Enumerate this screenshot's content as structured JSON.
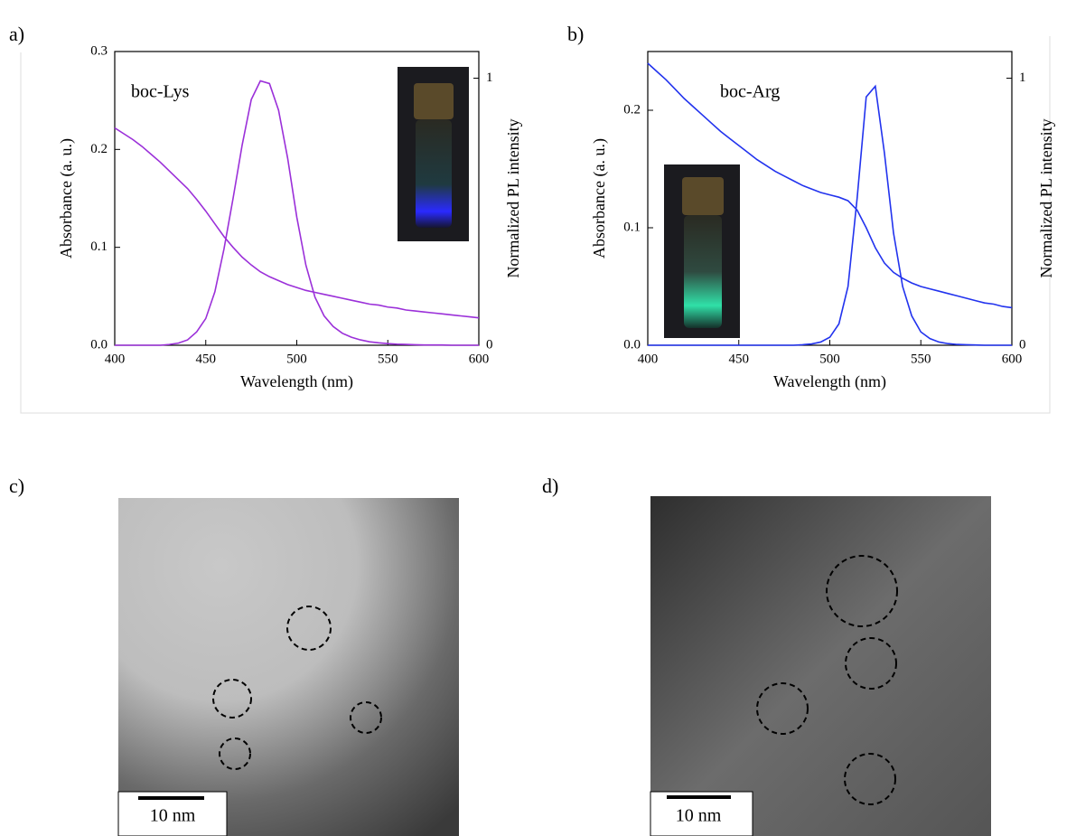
{
  "chart_data": [
    {
      "type": "line",
      "panel_label": "a)",
      "annotation": "boc-Lys",
      "xlabel": "Wavelength (nm)",
      "ylabel": "Absorbance (a. u.)",
      "y2label": "Normalized PL intensity",
      "xlim": [
        400,
        600
      ],
      "xticks": [
        400,
        450,
        500,
        550,
        600
      ],
      "ylim": [
        0,
        0.3
      ],
      "yticks": [
        {
          "value": 0,
          "label": "0.0"
        },
        0.1,
        0.2,
        0.3
      ],
      "y2lim": [
        0,
        1.1
      ],
      "y2ticks": [
        0,
        1
      ],
      "x": [
        400,
        405,
        410,
        415,
        420,
        425,
        430,
        435,
        440,
        445,
        450,
        455,
        460,
        465,
        470,
        475,
        480,
        485,
        490,
        495,
        500,
        505,
        510,
        515,
        520,
        525,
        530,
        535,
        540,
        545,
        550,
        555,
        560,
        565,
        570,
        575,
        580,
        585,
        590,
        595,
        600
      ],
      "series": [
        {
          "color": "#9b30d9",
          "values": [
            0.222,
            0.216,
            0.21,
            0.203,
            0.195,
            0.187,
            0.178,
            0.169,
            0.16,
            0.149,
            0.137,
            0.124,
            0.111,
            0.1,
            0.09,
            0.082,
            0.075,
            0.07,
            0.066,
            0.062,
            0.059,
            0.056,
            0.054,
            0.052,
            0.05,
            0.048,
            0.046,
            0.044,
            0.042,
            0.041,
            0.039,
            0.038,
            0.036,
            0.035,
            0.034,
            0.033,
            0.032,
            0.031,
            0.03,
            0.029,
            0.028
          ]
        },
        {
          "color": "#9b30d9",
          "axis": "y2",
          "values": [
            0,
            0,
            0,
            0,
            0,
            0,
            0.003,
            0.008,
            0.02,
            0.05,
            0.1,
            0.2,
            0.36,
            0.55,
            0.75,
            0.92,
            0.99,
            0.98,
            0.88,
            0.7,
            0.48,
            0.3,
            0.18,
            0.11,
            0.07,
            0.045,
            0.03,
            0.02,
            0.013,
            0.009,
            0.006,
            0.004,
            0.003,
            0.002,
            0.001,
            0.001,
            0.001,
            0,
            0,
            0,
            0
          ]
        }
      ]
    },
    {
      "type": "line",
      "panel_label": "b)",
      "annotation": "boc-Arg",
      "xlabel": "Wavelength (nm)",
      "ylabel": "Absorbance (a. u.)",
      "y2label": "Normalized PL intensity",
      "xlim": [
        400,
        600
      ],
      "xticks": [
        400,
        450,
        500,
        550,
        600
      ],
      "ylim": [
        0,
        0.25
      ],
      "yticks": [
        {
          "value": 0,
          "label": "0.0"
        },
        0.1,
        0.2
      ],
      "y2lim": [
        0,
        1.1
      ],
      "y2ticks": [
        0,
        1
      ],
      "x": [
        400,
        405,
        410,
        415,
        420,
        425,
        430,
        435,
        440,
        445,
        450,
        455,
        460,
        465,
        470,
        475,
        480,
        485,
        490,
        495,
        500,
        505,
        510,
        515,
        520,
        525,
        530,
        535,
        540,
        545,
        550,
        555,
        560,
        565,
        570,
        575,
        580,
        585,
        590,
        595,
        600
      ],
      "series": [
        {
          "color": "#2233ee",
          "values": [
            0.24,
            0.233,
            0.226,
            0.218,
            0.21,
            0.203,
            0.196,
            0.189,
            0.182,
            0.176,
            0.17,
            0.164,
            0.158,
            0.153,
            0.148,
            0.144,
            0.14,
            0.136,
            0.133,
            0.13,
            0.128,
            0.126,
            0.123,
            0.115,
            0.1,
            0.083,
            0.07,
            0.062,
            0.057,
            0.053,
            0.05,
            0.048,
            0.046,
            0.044,
            0.042,
            0.04,
            0.038,
            0.036,
            0.035,
            0.033,
            0.032
          ]
        },
        {
          "color": "#2233ee",
          "axis": "y2",
          "values": [
            0,
            0,
            0,
            0,
            0,
            0,
            0,
            0,
            0,
            0,
            0,
            0,
            0,
            0,
            0,
            0,
            0,
            0.002,
            0.005,
            0.012,
            0.03,
            0.08,
            0.22,
            0.55,
            0.93,
            0.97,
            0.72,
            0.42,
            0.22,
            0.11,
            0.05,
            0.025,
            0.012,
            0.006,
            0.003,
            0.002,
            0.001,
            0,
            0,
            0,
            0
          ]
        }
      ]
    }
  ],
  "images": [
    {
      "panel_label": "c)",
      "scale_bar": "10 nm"
    },
    {
      "panel_label": "d)",
      "scale_bar": "10 nm"
    }
  ]
}
